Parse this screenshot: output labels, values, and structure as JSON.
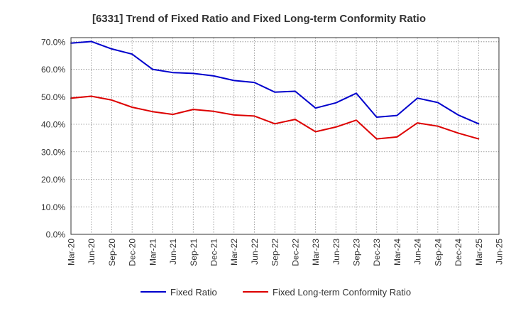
{
  "chart_data": {
    "type": "line",
    "title": "[6331]  Trend of Fixed Ratio and Fixed Long-term Conformity Ratio",
    "x": [
      "Mar-20",
      "Jun-20",
      "Sep-20",
      "Dec-20",
      "Mar-21",
      "Jun-21",
      "Sep-21",
      "Dec-21",
      "Mar-22",
      "Jun-22",
      "Sep-22",
      "Dec-22",
      "Mar-23",
      "Jun-23",
      "Sep-23",
      "Dec-23",
      "Mar-24",
      "Jun-24",
      "Sep-24",
      "Dec-24",
      "Mar-25"
    ],
    "x_ticks": [
      "Mar-20",
      "Jun-20",
      "Sep-20",
      "Dec-20",
      "Mar-21",
      "Jun-21",
      "Sep-21",
      "Dec-21",
      "Mar-22",
      "Jun-22",
      "Sep-22",
      "Dec-22",
      "Mar-23",
      "Jun-23",
      "Sep-23",
      "Dec-23",
      "Mar-24",
      "Jun-24",
      "Sep-24",
      "Dec-24",
      "Mar-25",
      "Jun-25"
    ],
    "y_ticks": [
      "0.0%",
      "10.0%",
      "20.0%",
      "30.0%",
      "40.0%",
      "50.0%",
      "60.0%",
      "70.0%"
    ],
    "ylim": [
      0,
      71.5
    ],
    "grid": true,
    "legend_position": "bottom",
    "series": [
      {
        "name": "Fixed Ratio",
        "color": "#0000cc",
        "values": [
          69.5,
          70.1,
          67.4,
          65.5,
          60.0,
          58.8,
          58.5,
          57.6,
          55.9,
          55.2,
          51.7,
          52.0,
          45.9,
          47.8,
          51.3,
          42.6,
          43.2,
          49.5,
          47.9,
          43.4,
          40.2
        ]
      },
      {
        "name": "Fixed Long-term Conformity Ratio",
        "color": "#dd0000",
        "values": [
          49.5,
          50.2,
          48.8,
          46.2,
          44.6,
          43.6,
          45.4,
          44.7,
          43.4,
          43.0,
          40.2,
          41.8,
          37.3,
          39.0,
          41.5,
          34.7,
          35.4,
          40.5,
          39.3,
          36.8,
          34.7
        ]
      }
    ]
  }
}
